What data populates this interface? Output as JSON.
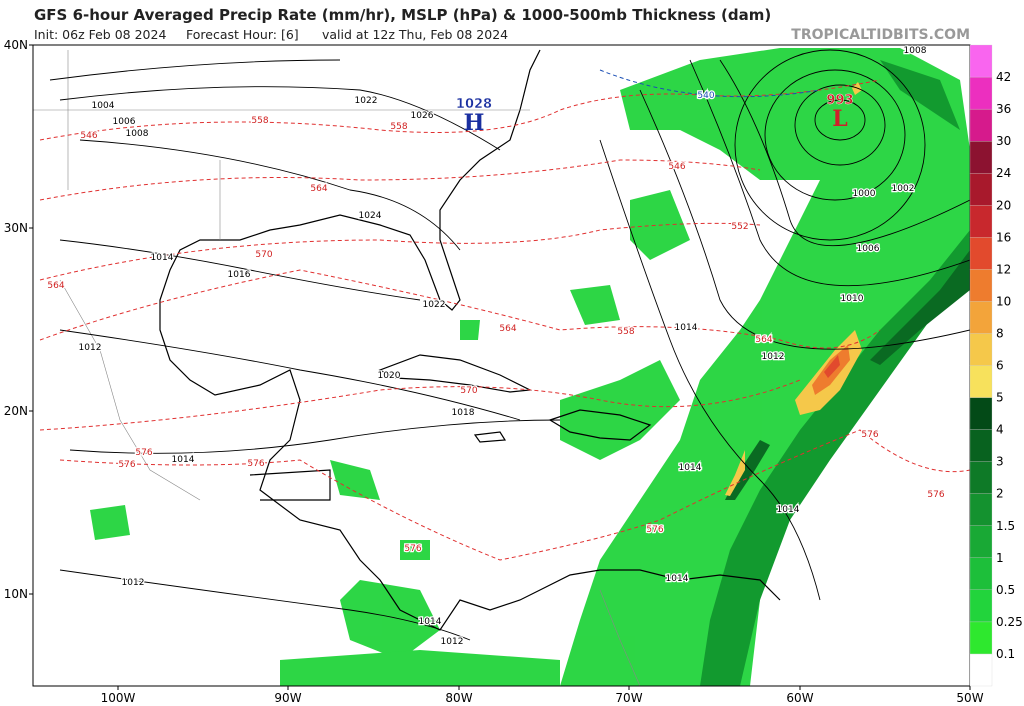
{
  "header": {
    "title": "GFS 6-hour Averaged Precip Rate (mm/hr), MSLP (hPa) & 1000-500mb Thickness (dam)",
    "init": "Init: 06z Feb 08 2024",
    "forecast": "Forecast Hour: [6]",
    "valid": "valid at 12z Thu, Feb 08 2024",
    "watermark": "TROPICALTIDBITS.COM"
  },
  "axes": {
    "lat_labels": [
      "40N",
      "30N",
      "20N",
      "10N"
    ],
    "lon_labels": [
      "100W",
      "90W",
      "80W",
      "70W",
      "60W",
      "50W"
    ]
  },
  "pressure_centers": [
    {
      "letter": "H",
      "value": "1028"
    },
    {
      "letter": "L",
      "value": "993"
    }
  ],
  "isobar_labels": [
    "1004",
    "1006",
    "1008",
    "1022",
    "1026",
    "1024",
    "1014",
    "1016",
    "1022",
    "1012",
    "1020",
    "1018",
    "1014",
    "1012",
    "1014",
    "1012",
    "1014",
    "1012",
    "1010",
    "1006",
    "1000",
    "1002",
    "1008",
    "1014",
    "1014",
    "1014"
  ],
  "thickness_labels": [
    "546",
    "558",
    "558",
    "564",
    "570",
    "564",
    "564",
    "558",
    "570",
    "576",
    "576",
    "576",
    "576",
    "576",
    "576",
    "576",
    "546",
    "552",
    "564",
    "540"
  ],
  "colorbar": {
    "labels": [
      0.1,
      0.25,
      0.5,
      1,
      1.5,
      2,
      3,
      4,
      5,
      6,
      8,
      10,
      12,
      16,
      20,
      24,
      30,
      36,
      42
    ]
  }
}
